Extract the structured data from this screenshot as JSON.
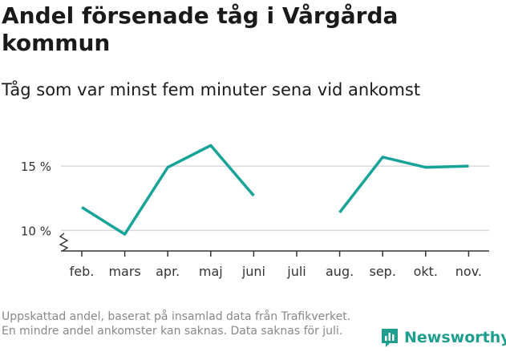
{
  "title": "Andel försenade tåg i Vårgårda kommun",
  "subtitle": "Tåg som var minst fem minuter sena vid ankomst",
  "footnote": "Uppskattad andel, baserat på insamlad data från Trafikverket. En mindre andel ankomster kan saknas. Data saknas för juli.",
  "brand": {
    "name": "Newsworthy",
    "color": "#1f9e8e",
    "icon": "chart-badge-icon"
  },
  "chart_data": {
    "type": "line",
    "title": "Andel försenade tåg i Vårgårda kommun",
    "subtitle": "Tåg som var minst fem minuter sena vid ankomst",
    "categories": [
      "feb.",
      "mars",
      "apr.",
      "maj",
      "juni",
      "juli",
      "aug.",
      "sep.",
      "okt.",
      "nov."
    ],
    "series": [
      {
        "color": "#17a398",
        "values": [
          11.8,
          9.7,
          14.9,
          16.6,
          12.7,
          null,
          11.4,
          15.7,
          14.9,
          15.0
        ]
      }
    ],
    "yticks": [
      10,
      15
    ],
    "ytick_labels": [
      "10 %",
      "15 %"
    ],
    "ylim": [
      8.4,
      17.5
    ],
    "y_axis_break": true,
    "grid": true,
    "line_color": "#17a398"
  }
}
